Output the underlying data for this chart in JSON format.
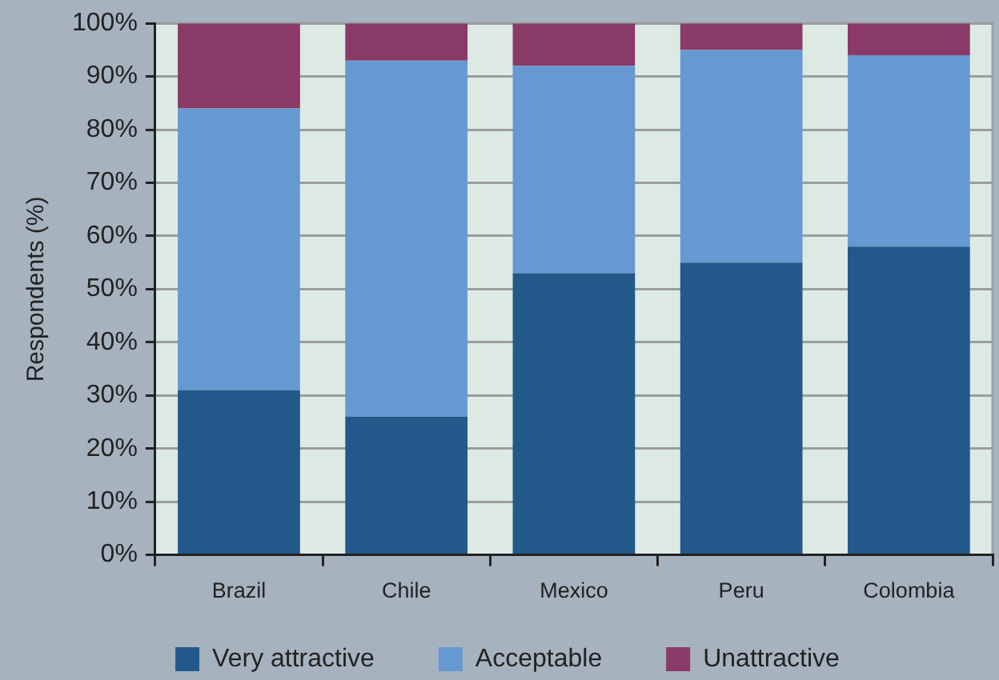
{
  "chart_data": {
    "type": "bar",
    "ylabel": "Respondents (%)",
    "categories": [
      "Brazil",
      "Chile",
      "Mexico",
      "Peru",
      "Colombia"
    ],
    "series": [
      {
        "name": "Very attractive",
        "color": "#23588a",
        "values": [
          31,
          26,
          53,
          55,
          58
        ]
      },
      {
        "name": "Acceptable",
        "color": "#6699d1",
        "values": [
          53,
          67,
          39,
          40,
          36
        ]
      },
      {
        "name": "Unattractive",
        "color": "#8a3a66",
        "values": [
          16,
          7,
          8,
          5,
          6
        ]
      }
    ],
    "stacked": true,
    "ylim": [
      0,
      100
    ],
    "yticks": [
      {
        "value": 0,
        "label": "0%"
      },
      {
        "value": 10,
        "label": "10%"
      },
      {
        "value": 20,
        "label": "20%"
      },
      {
        "value": 30,
        "label": "30%"
      },
      {
        "value": 40,
        "label": "40%"
      },
      {
        "value": 50,
        "label": "50%"
      },
      {
        "value": 60,
        "label": "60%"
      },
      {
        "value": 70,
        "label": "70%"
      },
      {
        "value": 80,
        "label": "80%"
      },
      {
        "value": 90,
        "label": "90%"
      },
      {
        "value": 100,
        "label": "100%"
      }
    ],
    "grid": "y",
    "legend": "bottom"
  }
}
